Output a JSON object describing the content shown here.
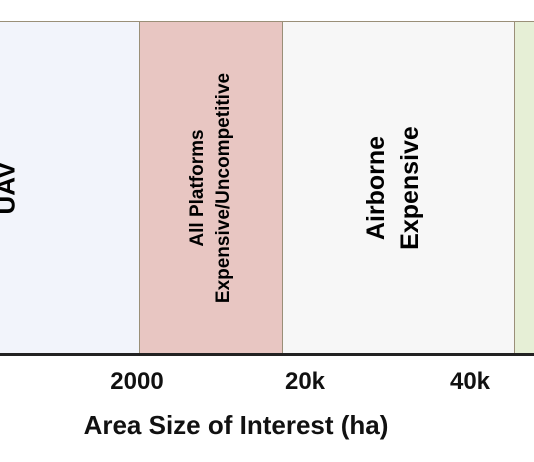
{
  "regions": {
    "uav": {
      "label": "UAV",
      "color": "#f2f4fb"
    },
    "all_platforms": {
      "line1": "All Platforms",
      "line2": "Expensive/Uncompetitive",
      "color": "#e8c6c2"
    },
    "airborne": {
      "line1": "Airborne",
      "line2": "Expensive",
      "color": "#f7f7f7"
    },
    "next_region": {
      "color": "#e6efd6"
    }
  },
  "axis": {
    "ticks": [
      "2000",
      "20k",
      "40k"
    ],
    "title": "Area Size of Interest (ha)"
  }
}
